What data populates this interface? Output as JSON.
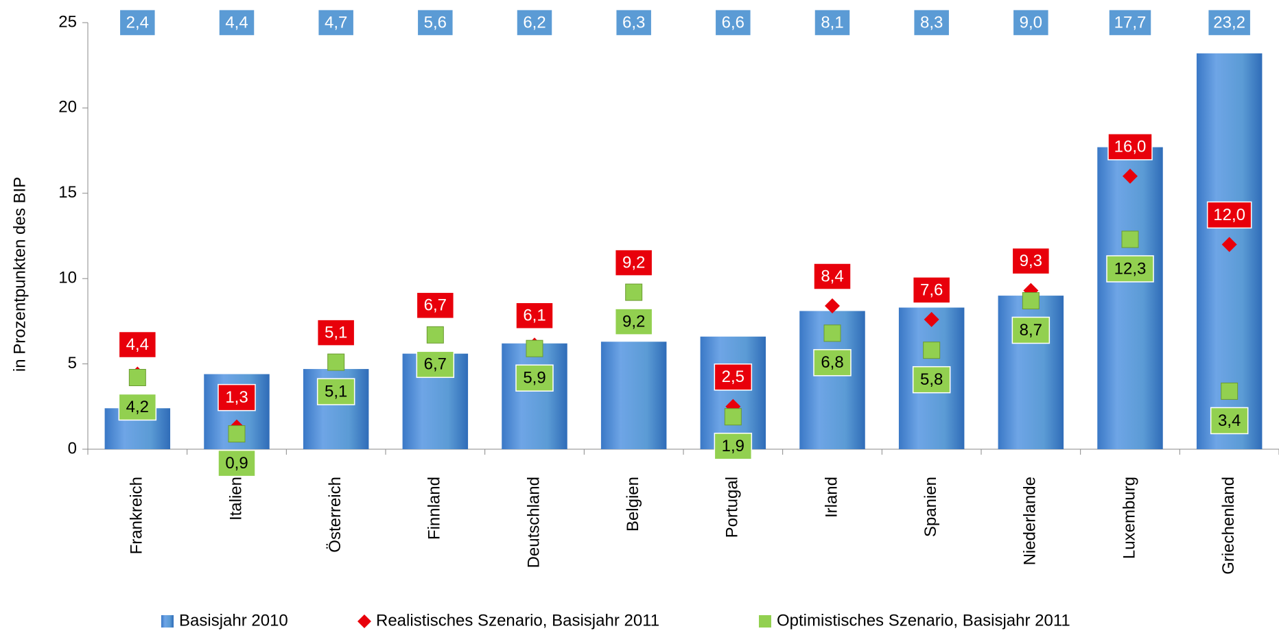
{
  "chart_data": {
    "type": "bar",
    "y_label": "in Prozentpunkten des BIP",
    "categories": [
      "Frankreich",
      "Italien",
      "Österreich",
      "Finnland",
      "Deutschland",
      "Belgien",
      "Portugal",
      "Irland",
      "Spanien",
      "Niederlande",
      "Luxemburg",
      "Griechenland"
    ],
    "series": [
      {
        "name": "Basisjahr 2010",
        "color": "#5b9bd5",
        "marker": "bar",
        "values": [
          2.4,
          4.4,
          4.7,
          5.6,
          6.2,
          6.3,
          6.6,
          8.1,
          8.3,
          9.0,
          17.7,
          23.2
        ],
        "value_labels": [
          "2,4",
          "4,4",
          "4,7",
          "5,6",
          "6,2",
          "6,3",
          "6,6",
          "8,1",
          "8,3",
          "9,0",
          "17,7",
          "23,2"
        ]
      },
      {
        "name": "Realistisches Szenario, Basisjahr 2011",
        "color": "#e8000b",
        "marker": "diamond",
        "values": [
          4.4,
          1.3,
          5.1,
          6.7,
          6.1,
          9.2,
          2.5,
          8.4,
          7.6,
          9.3,
          16.0,
          12.0
        ],
        "value_labels": [
          "4,4",
          "1,3",
          "5,1",
          "6,7",
          "6,1",
          "9,2",
          "2,5",
          "8,4",
          "7,6",
          "9,3",
          "16,0",
          "12,0"
        ]
      },
      {
        "name": "Optimistisches Szenario, Basisjahr 2011",
        "color": "#92d050",
        "marker": "square",
        "values": [
          4.2,
          0.9,
          5.1,
          6.7,
          5.9,
          9.2,
          1.9,
          6.8,
          5.8,
          8.7,
          12.3,
          3.4
        ],
        "value_labels": [
          "4,2",
          "0,9",
          "5,1",
          "6,7",
          "5,9",
          "9,2",
          "1,9",
          "6,8",
          "5,8",
          "8,7",
          "12,3",
          "3,4"
        ]
      }
    ],
    "ylim": [
      0,
      25
    ],
    "yticks": [
      0,
      5,
      10,
      15,
      20,
      25
    ],
    "legend": "bottom"
  }
}
